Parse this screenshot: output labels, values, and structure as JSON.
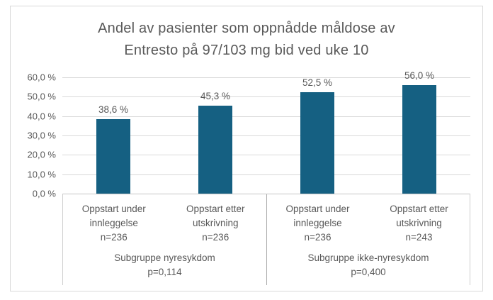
{
  "chart_data": {
    "type": "bar",
    "title": "Andel av pasienter som oppnådde måldose av Entresto på 97/103 mg bid ved uke 10",
    "title_lines": [
      "Andel av pasienter som oppnådde måldose av",
      "Entresto på 97/103 mg bid ved uke 10"
    ],
    "xlabel": "",
    "ylabel": "",
    "ylim": [
      0,
      60
    ],
    "ytick_step": 10,
    "yticks": [
      "60,0 %",
      "50,0 %",
      "40,0 %",
      "30,0 %",
      "20,0 %",
      "10,0 %",
      "0,0 %"
    ],
    "grid": true,
    "legend": false,
    "decimal_separator": ",",
    "value_suffix": " %",
    "categories": [
      "Oppstart under innleggelse n=236",
      "Oppstart etter utskrivning n=236",
      "Oppstart under innleggelse n=236",
      "Oppstart etter utskrivning n=243"
    ],
    "values": [
      38.6,
      45.3,
      52.5,
      56.0
    ],
    "groups": [
      {
        "label_lines": [
          "Subgruppe nyresykdom",
          "p=0,114"
        ],
        "bars": [
          {
            "category_lines": [
              "Oppstart under",
              "innleggelse",
              "n=236"
            ],
            "value": 38.6,
            "label": "38,6 %"
          },
          {
            "category_lines": [
              "Oppstart etter",
              "utskrivning",
              "n=236"
            ],
            "value": 45.3,
            "label": "45,3 %"
          }
        ]
      },
      {
        "label_lines": [
          "Subgruppe ikke-nyresykdom",
          "p=0,400"
        ],
        "bars": [
          {
            "category_lines": [
              "Oppstart under",
              "innleggelse",
              "n=236"
            ],
            "value": 52.5,
            "label": "52,5 %"
          },
          {
            "category_lines": [
              "Oppstart etter",
              "utskrivning",
              "n=243"
            ],
            "value": 56.0,
            "label": "56,0 %"
          }
        ]
      }
    ],
    "colors": {
      "bar": "#156082",
      "gridline": "#d9d9d9",
      "frame_border": "#d9d9d9",
      "axis_box_line": "#c6c6c6",
      "group_divider": "#ababab",
      "text": "#595959"
    }
  }
}
